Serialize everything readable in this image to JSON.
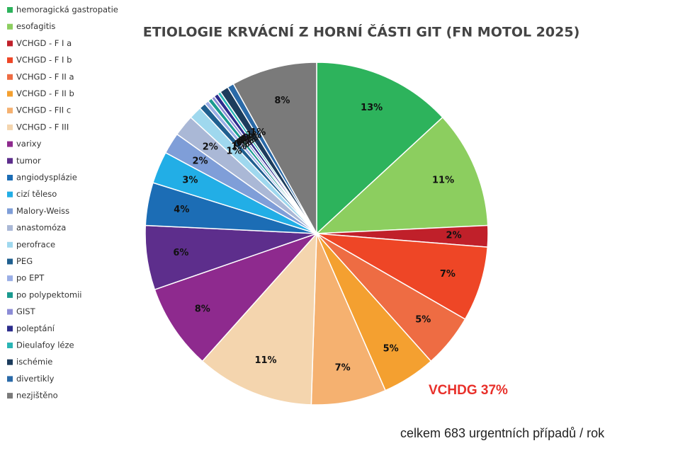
{
  "chart_data": {
    "type": "pie",
    "title": "ETIOLOGIE KRVÁCNÍ Z HORNÍ ČÁSTI GIT (FN MOTOL 2025)",
    "categories": [
      "hemoragická gastropatie",
      "esofagitis",
      "VCHGD - F I a",
      "VCHGD - F I b",
      "VCHGD - F II a",
      "VCHGD - F II b",
      "VCHGD - FII c",
      "VCHGD - F III",
      "varixy",
      "tumor",
      "angiodysplázie",
      "cizí těleso",
      "Malory-Weiss",
      "anastomóza",
      "perofrace",
      "PEG",
      "po EPT",
      "po polypektomii",
      "GIST",
      "poleptání",
      "Dieulafoy léze",
      "ischémie",
      "divertikly",
      "nezjištěno"
    ],
    "values": [
      13,
      11,
      2,
      7,
      5,
      5,
      7,
      11,
      8,
      6,
      4,
      3,
      2,
      2,
      1.2,
      0.6,
      0.4,
      0.4,
      0.3,
      0.4,
      0.3,
      0.8,
      0.6,
      8
    ],
    "value_labels": [
      "13%",
      "11%",
      "2%",
      "7%",
      "5%",
      "5%",
      "7%",
      "11%",
      "8%",
      "6%",
      "4%",
      "3%",
      "2%",
      "2%",
      "1%",
      "1%",
      "0%",
      "0%",
      "0%",
      "0%",
      "0%",
      "1%",
      "1%",
      "8%"
    ],
    "colors": [
      "#2db35c",
      "#8cce5f",
      "#c0202a",
      "#ee4626",
      "#ee6c43",
      "#f4a030",
      "#f5b170",
      "#f4d5ae",
      "#8e2a8e",
      "#5d2e8c",
      "#1c6db5",
      "#22aee6",
      "#7f9ed8",
      "#aab8d6",
      "#9fd8ee",
      "#1f5f8f",
      "#9aaee6",
      "#1a9a8f",
      "#8c8cd6",
      "#2c2c8c",
      "#2ab5b5",
      "#1c3c5c",
      "#2a6aa8",
      "#7a7a7a"
    ],
    "annotations": [
      "VCHDG  37%",
      "celkem 683 urgentních případů / rok"
    ]
  }
}
